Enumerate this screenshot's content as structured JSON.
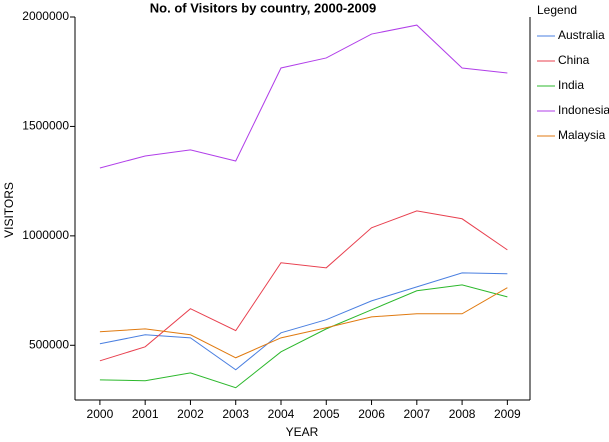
{
  "chart_data": {
    "type": "line",
    "title": "No. of Visitors by country, 2000-2009",
    "x_label": "YEAR",
    "y_label": "VISITORS",
    "legend_title": "Legend",
    "legend": "right",
    "x": [
      2000,
      2001,
      2002,
      2003,
      2004,
      2005,
      2006,
      2007,
      2008,
      2009
    ],
    "xlim": [
      1999.45,
      2009.5
    ],
    "xticks": [
      2000,
      2001,
      2002,
      2003,
      2004,
      2005,
      2006,
      2007,
      2008,
      2009
    ],
    "ylim": [
      250000,
      2000000
    ],
    "yticks": [
      500000,
      1000000,
      1500000,
      2000000
    ],
    "series": [
      {
        "name": "Australia",
        "color": "#4a7fe0",
        "values": [
          507000,
          548000,
          534000,
          388000,
          557000,
          617000,
          703000,
          767000,
          831000,
          827000
        ]
      },
      {
        "name": "China",
        "color": "#e8404f",
        "values": [
          429000,
          493000,
          667000,
          567000,
          877000,
          854000,
          1037000,
          1114000,
          1078000,
          936000
        ]
      },
      {
        "name": "India",
        "color": "#2cb82c",
        "values": [
          342000,
          338000,
          374000,
          306000,
          470000,
          575000,
          662000,
          749000,
          776000,
          721000
        ]
      },
      {
        "name": "Indonesia",
        "color": "#b13fe9",
        "values": [
          1310000,
          1365000,
          1393000,
          1342000,
          1767000,
          1813000,
          1922000,
          1963000,
          1767000,
          1744000
        ]
      },
      {
        "name": "Malaysia",
        "color": "#e07a10",
        "values": [
          562000,
          575000,
          548000,
          443000,
          534000,
          580000,
          630000,
          644000,
          644000,
          763000
        ]
      }
    ]
  }
}
